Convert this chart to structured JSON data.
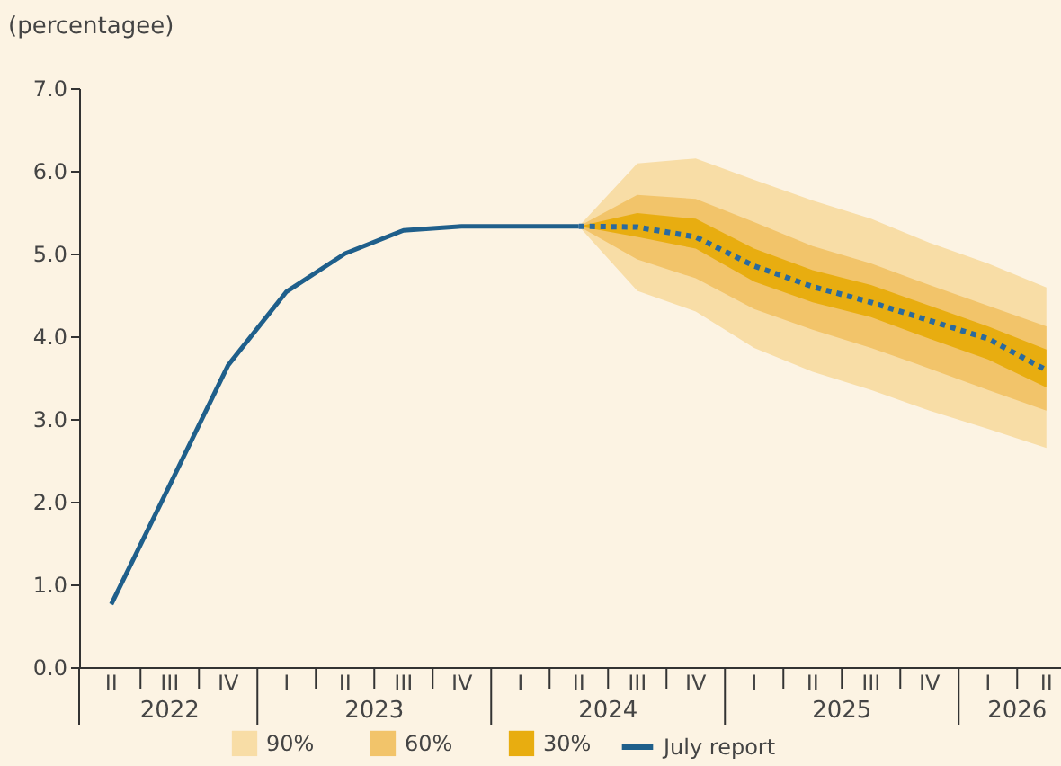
{
  "chart_data": {
    "type": "line",
    "ylabel": "(percentagee)",
    "categories": [
      "II",
      "III",
      "IV",
      "I",
      "II",
      "III",
      "IV",
      "I",
      "II",
      "III",
      "IV",
      "I",
      "II",
      "III",
      "IV",
      "I",
      "II"
    ],
    "ylim": [
      0,
      7
    ],
    "yticks": [
      {
        "value": 0,
        "label": "0.0"
      },
      {
        "value": 1,
        "label": "1.0"
      },
      {
        "value": 2,
        "label": "2.0"
      },
      {
        "value": 3,
        "label": "3.0"
      },
      {
        "value": 4,
        "label": "4.0"
      },
      {
        "value": 5,
        "label": "5.0"
      },
      {
        "value": 6,
        "label": "6.0"
      },
      {
        "value": 7,
        "label": "7.0"
      }
    ],
    "grid": false,
    "legend": "bottom",
    "series": [
      {
        "name": "90%",
        "type": "area",
        "color": "#f8dda6",
        "values": [
          null,
          null,
          null,
          null,
          null,
          null,
          null,
          null,
          null,
          null,
          null,
          null,
          null,
          null,
          null,
          null,
          null
        ],
        "upper": [
          null,
          null,
          null,
          null,
          null,
          null,
          null,
          null,
          5.33,
          6.09,
          6.15,
          5.89,
          5.64,
          5.42,
          5.13,
          4.88,
          4.59
        ],
        "lower": [
          null,
          null,
          null,
          null,
          null,
          null,
          null,
          null,
          5.33,
          4.55,
          4.3,
          3.86,
          3.57,
          3.35,
          3.1,
          2.88,
          2.65
        ]
      },
      {
        "name": "60%",
        "type": "area",
        "color": "#f2c46a",
        "values": [
          null,
          null,
          null,
          null,
          null,
          null,
          null,
          null,
          null,
          null,
          null,
          null,
          null,
          null,
          null,
          null,
          null
        ],
        "upper": [
          null,
          null,
          null,
          null,
          null,
          null,
          null,
          null,
          5.33,
          5.71,
          5.66,
          5.38,
          5.09,
          4.88,
          4.62,
          4.37,
          4.12
        ],
        "lower": [
          null,
          null,
          null,
          null,
          null,
          null,
          null,
          null,
          5.33,
          4.93,
          4.7,
          4.33,
          4.08,
          3.86,
          3.61,
          3.35,
          3.1
        ]
      },
      {
        "name": "30%",
        "type": "area",
        "color": "#e8ad10",
        "values": [
          null,
          null,
          null,
          null,
          null,
          null,
          null,
          null,
          null,
          null,
          null,
          null,
          null,
          null,
          null,
          null,
          null
        ],
        "upper": [
          null,
          null,
          null,
          null,
          null,
          null,
          null,
          null,
          5.33,
          5.49,
          5.42,
          5.06,
          4.8,
          4.62,
          4.37,
          4.12,
          3.84
        ],
        "lower": [
          null,
          null,
          null,
          null,
          null,
          null,
          null,
          null,
          5.33,
          5.2,
          5.06,
          4.66,
          4.41,
          4.23,
          3.97,
          3.72,
          3.38
        ]
      },
      {
        "name": "July report",
        "type": "line",
        "color": "#1f5f8b",
        "line_style": "solid",
        "values": [
          0.76,
          2.2,
          3.65,
          4.54,
          5.0,
          5.28,
          5.33,
          5.33,
          5.33,
          null,
          null,
          null,
          null,
          null,
          null,
          null,
          null
        ]
      },
      {
        "type": "line",
        "color": "#2a6a9e",
        "line_style": "dotted",
        "values": [
          null,
          null,
          null,
          null,
          null,
          null,
          null,
          null,
          5.33,
          5.32,
          5.2,
          4.85,
          4.6,
          4.41,
          4.19,
          3.97,
          3.59
        ]
      }
    ],
    "annotations": [
      "2022",
      "2023",
      "2024",
      "2025",
      "2026"
    ]
  }
}
